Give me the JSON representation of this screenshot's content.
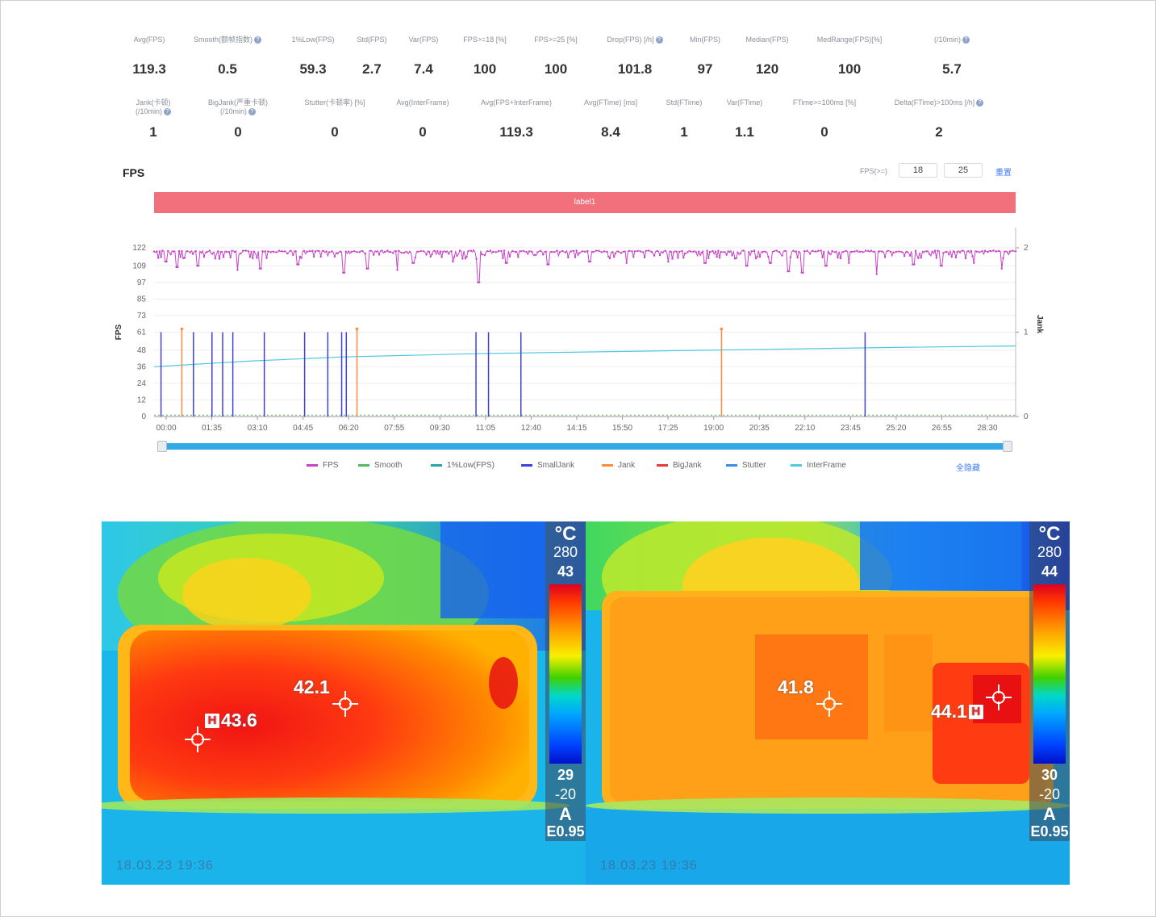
{
  "stats_row1": [
    {
      "label": "Avg(FPS)",
      "value": "119.3",
      "help": false
    },
    {
      "label": "Smooth(额帧指数)",
      "value": "0.5",
      "help": true
    },
    {
      "label": "1%Low(FPS)",
      "value": "59.3",
      "help": false
    },
    {
      "label": "Std(FPS)",
      "value": "2.7",
      "help": false
    },
    {
      "label": "Var(FPS)",
      "value": "7.4",
      "help": false
    },
    {
      "label": "FPS>=18 [%]",
      "value": "100",
      "help": false
    },
    {
      "label": "FPS>=25 [%]",
      "value": "100",
      "help": false
    },
    {
      "label": "Drop(FPS) [/h]",
      "value": "101.8",
      "help": true
    },
    {
      "label": "Min(FPS)",
      "value": "97",
      "help": false
    },
    {
      "label": "Median(FPS)",
      "value": "120",
      "help": false
    },
    {
      "label": "MedRange(FPS)[%]",
      "value": "100",
      "help": false
    },
    {
      "label": "(/10min)",
      "value": "5.7",
      "help": true
    }
  ],
  "stats_row2": [
    {
      "label": "Jank(卡顿)",
      "label2": "(/10min)",
      "value": "1",
      "help": true
    },
    {
      "label": "BigJank(严重卡顿)",
      "label2": "(/10min)",
      "value": "0",
      "help": true
    },
    {
      "label": "Stutter(卡顿率) [%]",
      "label2": "",
      "value": "0",
      "help": false
    },
    {
      "label": "Avg(InterFrame)",
      "label2": "",
      "value": "0",
      "help": false
    },
    {
      "label": "Avg(FPS+InterFrame)",
      "label2": "",
      "value": "119.3",
      "help": false
    },
    {
      "label": "Avg(FTime) [ms]",
      "label2": "",
      "value": "8.4",
      "help": false
    },
    {
      "label": "Std(FTime)",
      "label2": "",
      "value": "1",
      "help": false
    },
    {
      "label": "Var(FTime)",
      "label2": "",
      "value": "1.1",
      "help": false
    },
    {
      "label": "FTime>=100ms [%]",
      "label2": "",
      "value": "0",
      "help": false
    },
    {
      "label": "Delta(FTime)>100ms [/h]",
      "label2": "",
      "value": "2",
      "help": true
    }
  ],
  "fps_section": {
    "title": "FPS",
    "threshold_label": "FPS(>=)",
    "threshold_a": "18",
    "threshold_b": "25",
    "reset_label": "重置",
    "label_bar": "label1",
    "show_all": "全隐藏"
  },
  "chart_data": {
    "type": "line",
    "ylabel": "FPS",
    "y2label": "Jank",
    "yticks": [
      "122",
      "109",
      "97",
      "85",
      "73",
      "61",
      "48",
      "36",
      "24",
      "12",
      "0"
    ],
    "ylim": [
      0,
      122
    ],
    "y2ticks": [
      "2",
      "1",
      "0"
    ],
    "y2lim": [
      0,
      2
    ],
    "xticks": [
      "00:00",
      "01:35",
      "03:10",
      "04:45",
      "06:20",
      "07:55",
      "09:30",
      "11:05",
      "12:40",
      "14:15",
      "15:50",
      "17:25",
      "19:00",
      "20:35",
      "22:10",
      "23:45",
      "25:20",
      "26:55",
      "28:30"
    ],
    "x_range_seconds": [
      0,
      1860
    ],
    "grid": true,
    "legend_position": "bottom",
    "series": [
      {
        "name": "FPS",
        "color": "#c843c8",
        "baseline": 119.3,
        "dips": [
          [
            25,
            112
          ],
          [
            50,
            108
          ],
          [
            95,
            109
          ],
          [
            180,
            106
          ],
          [
            230,
            107
          ],
          [
            310,
            110
          ],
          [
            410,
            104
          ],
          [
            460,
            107
          ],
          [
            525,
            106
          ],
          [
            560,
            111
          ],
          [
            645,
            112
          ],
          [
            700,
            97
          ],
          [
            760,
            111
          ],
          [
            850,
            110
          ],
          [
            940,
            112
          ],
          [
            1020,
            111
          ],
          [
            1110,
            112
          ],
          [
            1190,
            111
          ],
          [
            1280,
            109
          ],
          [
            1330,
            111
          ],
          [
            1370,
            105
          ],
          [
            1400,
            104
          ],
          [
            1450,
            109
          ],
          [
            1500,
            111
          ],
          [
            1560,
            103
          ],
          [
            1640,
            110
          ],
          [
            1700,
            109
          ],
          [
            1770,
            111
          ],
          [
            1830,
            107
          ]
        ]
      },
      {
        "name": "Smooth",
        "color": "#5cb85c"
      },
      {
        "name": "1%Low(FPS)",
        "color": "#2aa5a5"
      },
      {
        "name": "SmallJank",
        "color": "#4040e0",
        "events": [
          15,
          85,
          125,
          148,
          170,
          238,
          325,
          375,
          405,
          415,
          695,
          722,
          792,
          1535
        ]
      },
      {
        "name": "Jank",
        "color": "#ff8a3d",
        "events": [
          60,
          438,
          1225
        ]
      },
      {
        "name": "BigJank",
        "color": "#e23b3b",
        "events": []
      },
      {
        "name": "Stutter",
        "color": "#3b8de0"
      },
      {
        "name": "InterFrame",
        "color": "#4fc8e0",
        "curve": [
          [
            0,
            36
          ],
          [
            200,
            40
          ],
          [
            400,
            43
          ],
          [
            700,
            45.5
          ],
          [
            1000,
            47
          ],
          [
            1300,
            48.5
          ],
          [
            1600,
            50
          ],
          [
            1860,
            51
          ]
        ]
      }
    ]
  },
  "colors": {
    "label_bar": "#f2707c",
    "slider": "#32a9e6",
    "link": "#3d7bfa"
  },
  "thermal": [
    {
      "unit": "°C",
      "range_top": "280",
      "max": "43",
      "min": "29",
      "range_bottom": "-20",
      "mode": "A",
      "emissivity": "E0.95",
      "spots": [
        {
          "value": "43.6",
          "hot": true
        },
        {
          "value": "42.1",
          "hot": false
        }
      ],
      "timestamp": "18.03.23 19:36"
    },
    {
      "unit": "°C",
      "range_top": "280",
      "max": "44",
      "min": "30",
      "range_bottom": "-20",
      "mode": "A",
      "emissivity": "E0.95",
      "spots": [
        {
          "value": "41.8",
          "hot": false
        },
        {
          "value": "44.1",
          "hot": true
        }
      ],
      "timestamp": "18.03.23 19:36"
    }
  ]
}
